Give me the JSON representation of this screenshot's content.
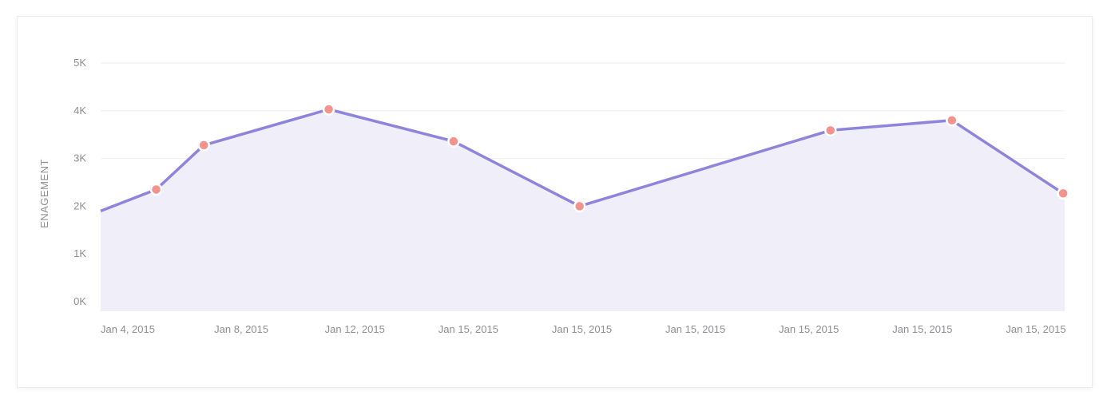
{
  "chart_data": {
    "type": "area",
    "title": "",
    "xlabel": "",
    "ylabel": "ENAGEMENT",
    "categories": [
      "Jan 4, 2015",
      "Jan 8, 2015",
      "Jan 12, 2015",
      "Jan 15, 2015",
      "Jan 15, 2015",
      "Jan 15, 2015",
      "Jan 15, 2015",
      "Jan 15, 2015",
      "Jan 15, 2015"
    ],
    "yticks": [
      "0K",
      "1K",
      "2K",
      "3K",
      "4K",
      "5K"
    ],
    "ylim": [
      0,
      5000
    ],
    "grid": true,
    "series": [
      {
        "line_start": 1900,
        "points": [
          {
            "x": 0.25,
            "y": 2350
          },
          {
            "x": 0.67,
            "y": 3280
          },
          {
            "x": 1.77,
            "y": 4030
          },
          {
            "x": 2.87,
            "y": 3360
          },
          {
            "x": 3.98,
            "y": 2000
          },
          {
            "x": 6.19,
            "y": 3590
          },
          {
            "x": 7.26,
            "y": 3800
          },
          {
            "x": 8.24,
            "y": 2270
          }
        ],
        "line_end": 2270
      }
    ],
    "colors": {
      "line": "#8f84db",
      "area": "#f0eef9",
      "marker": "#f4928c",
      "marker_border": "#ffffff",
      "grid": "#eeeeee"
    }
  }
}
